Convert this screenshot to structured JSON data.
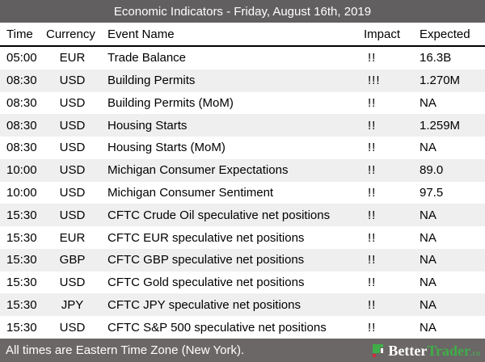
{
  "header": {
    "title": "Economic Indicators - Friday, August 16th, 2019"
  },
  "table": {
    "headers": [
      "Time",
      "Currency",
      "Event Name",
      "Impact",
      "Expected"
    ],
    "rows": [
      {
        "time": "05:00",
        "currency": "EUR",
        "event": "Trade Balance",
        "impact": "!!",
        "expected": "16.3B"
      },
      {
        "time": "08:30",
        "currency": "USD",
        "event": "Building Permits",
        "impact": "!!!",
        "expected": "1.270M"
      },
      {
        "time": "08:30",
        "currency": "USD",
        "event": "Building Permits (MoM)",
        "impact": "!!",
        "expected": "NA"
      },
      {
        "time": "08:30",
        "currency": "USD",
        "event": "Housing Starts",
        "impact": "!!",
        "expected": "1.259M"
      },
      {
        "time": "08:30",
        "currency": "USD",
        "event": "Housing Starts (MoM)",
        "impact": "!!",
        "expected": "NA"
      },
      {
        "time": "10:00",
        "currency": "USD",
        "event": "Michigan Consumer Expectations",
        "impact": "!!",
        "expected": "89.0"
      },
      {
        "time": "10:00",
        "currency": "USD",
        "event": "Michigan Consumer Sentiment",
        "impact": "!!",
        "expected": "97.5"
      },
      {
        "time": "15:30",
        "currency": "USD",
        "event": "CFTC Crude Oil speculative net positions",
        "impact": "!!",
        "expected": "NA"
      },
      {
        "time": "15:30",
        "currency": "EUR",
        "event": "CFTC EUR speculative net positions",
        "impact": "!!",
        "expected": "NA"
      },
      {
        "time": "15:30",
        "currency": "GBP",
        "event": "CFTC GBP speculative net positions",
        "impact": "!!",
        "expected": "NA"
      },
      {
        "time": "15:30",
        "currency": "USD",
        "event": "CFTC Gold speculative net positions",
        "impact": "!!",
        "expected": "NA"
      },
      {
        "time": "15:30",
        "currency": "JPY",
        "event": "CFTC JPY speculative net positions",
        "impact": "!!",
        "expected": "NA"
      },
      {
        "time": "15:30",
        "currency": "USD",
        "event": "CFTC S&P 500 speculative net positions",
        "impact": "!!",
        "expected": "NA"
      }
    ]
  },
  "footer": {
    "note": "All times are Eastern Time Zone (New York).",
    "brand": {
      "name_primary": "Better",
      "name_secondary": "Trader",
      "tld": ".co"
    }
  },
  "colors": {
    "title_bar_gray": "#625f60",
    "footer_bar_gray": "#6b6766",
    "row_alt_gray": "#efefef",
    "brand_green": "#3fae49",
    "brand_red": "#cc2f3a"
  }
}
